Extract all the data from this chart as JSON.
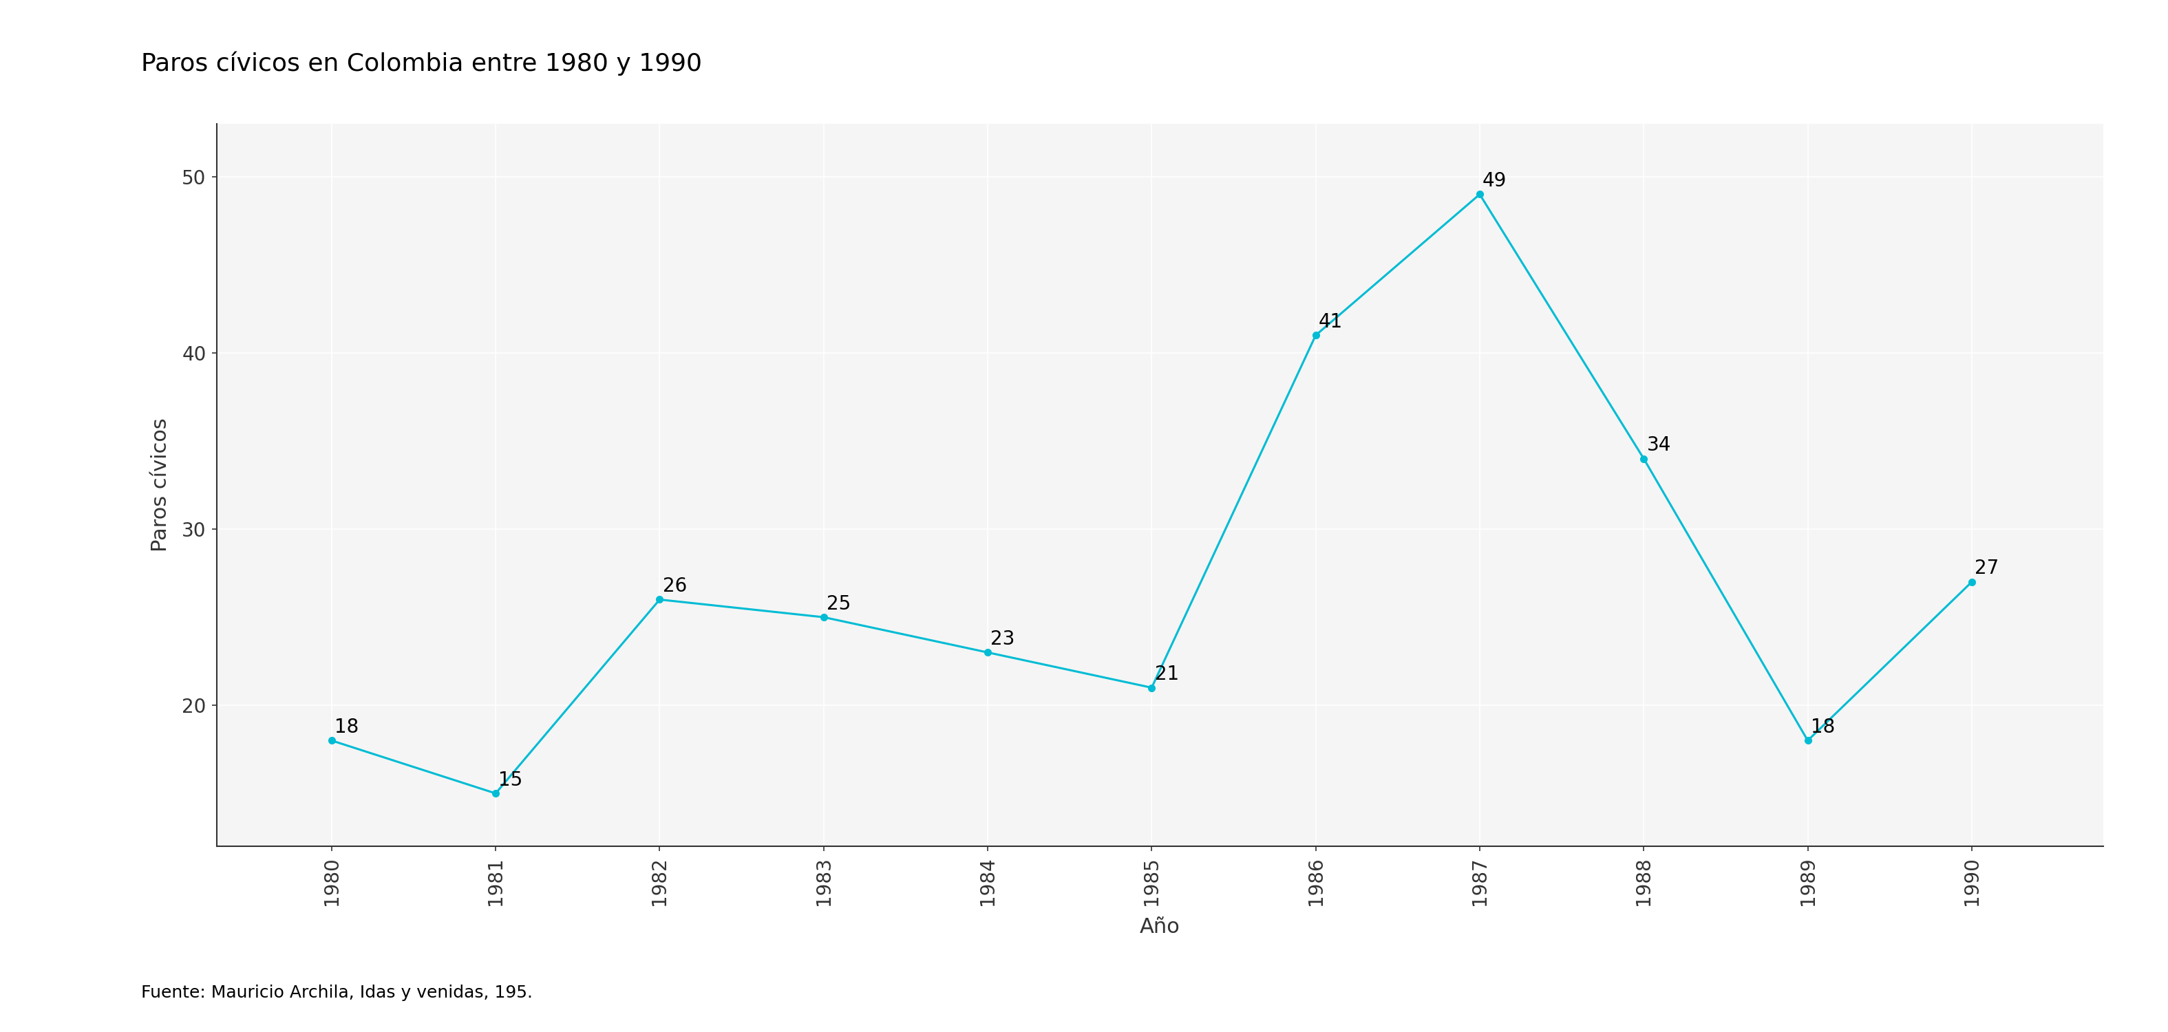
{
  "title": "Paros cívicos en Colombia entre 1980 y 1990",
  "xlabel": "Año",
  "ylabel": "Paros cívicos",
  "footnote": "Fuente: Mauricio Archila, Idas y venidas, 195.",
  "years": [
    1980,
    1981,
    1982,
    1983,
    1984,
    1985,
    1986,
    1987,
    1988,
    1989,
    1990
  ],
  "values": [
    18,
    15,
    26,
    25,
    23,
    21,
    41,
    49,
    34,
    18,
    27
  ],
  "line_color": "#00BCD4",
  "marker_color": "#00BCD4",
  "background_color": "#FFFFFF",
  "panel_color": "#F5F5F5",
  "grid_color": "#FFFFFF",
  "spine_color": "#333333",
  "title_fontsize": 26,
  "label_fontsize": 22,
  "tick_fontsize": 20,
  "annotation_fontsize": 20,
  "footnote_fontsize": 18,
  "ylim": [
    12,
    53
  ],
  "yticks": [
    20,
    30,
    40,
    50
  ],
  "line_width": 2.2,
  "marker_size": 7
}
